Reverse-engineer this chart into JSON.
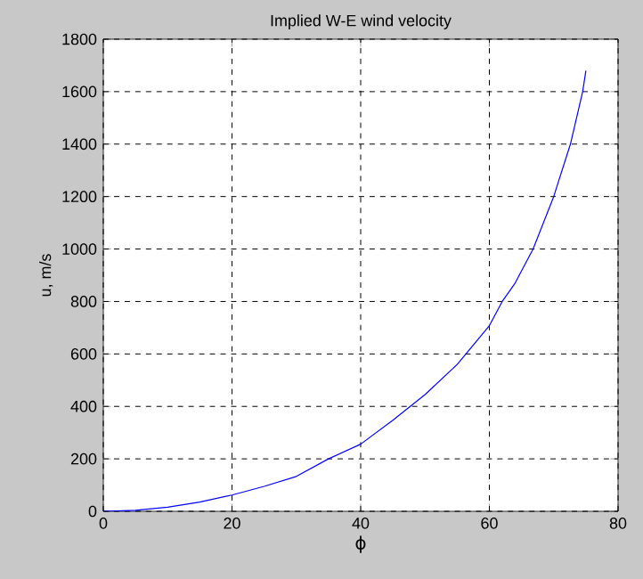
{
  "chart_data": {
    "type": "line",
    "title": "Implied W-E wind velocity",
    "xlabel": "ϕ",
    "ylabel": "u, m/s",
    "xlim": [
      0,
      80
    ],
    "xticks": [
      0,
      20,
      40,
      60,
      80
    ],
    "ylim": [
      0,
      1800
    ],
    "yticks": [
      0,
      200,
      400,
      600,
      800,
      1000,
      1200,
      1400,
      1600,
      1800
    ],
    "grid": true,
    "marker": "none",
    "line_style": "solid",
    "series": [
      {
        "color": "#0000ff",
        "x": [
          0,
          5,
          10,
          15,
          20,
          25,
          30,
          35,
          40,
          45,
          50,
          55,
          60,
          62,
          64,
          66.8,
          70,
          72.6,
          74.5,
          75
        ],
        "values": [
          0,
          4,
          16,
          35,
          62,
          95,
          133,
          200,
          256,
          347,
          445,
          560,
          708,
          800,
          870,
          1000,
          1200,
          1400,
          1600,
          1680
        ]
      }
    ]
  }
}
